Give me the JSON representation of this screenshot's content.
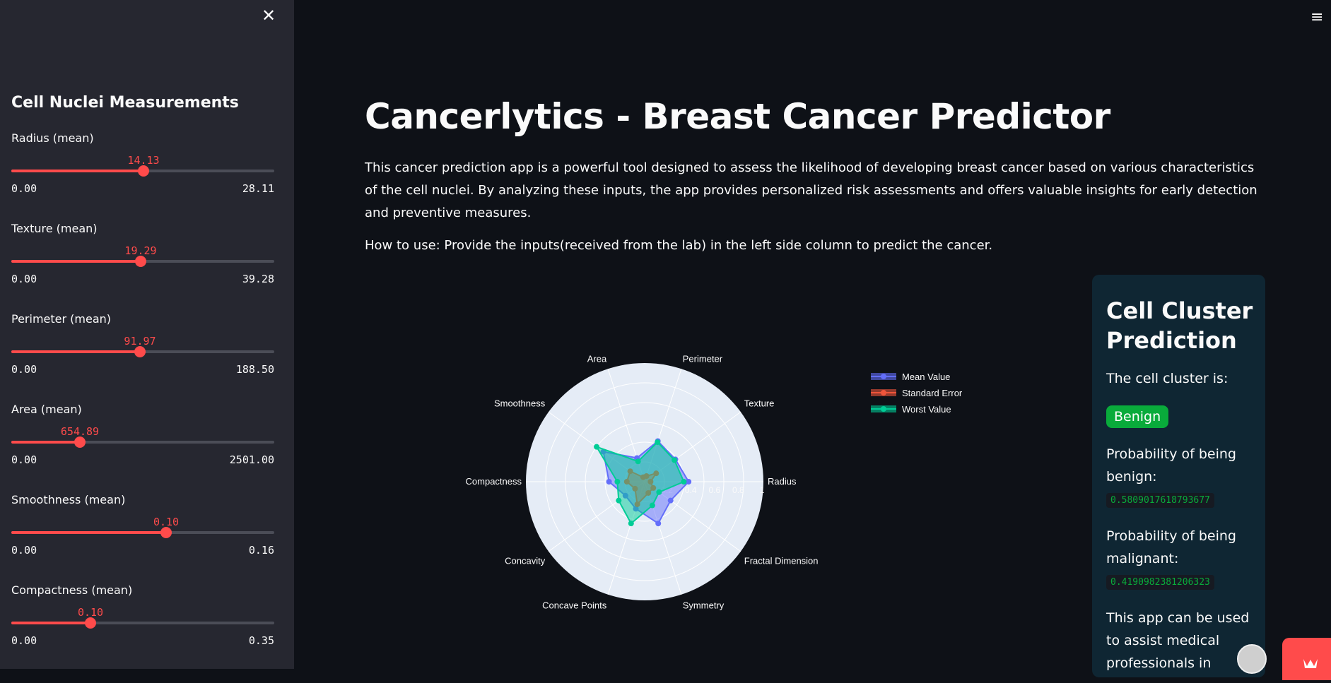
{
  "sidebar": {
    "title": "Cell Nuclei Measurements",
    "close_icon": "close-icon",
    "sliders": [
      {
        "label": "Radius (mean)",
        "value": "14.13",
        "min": "0.00",
        "max": "28.11",
        "fraction": 0.503
      },
      {
        "label": "Texture (mean)",
        "value": "19.29",
        "min": "0.00",
        "max": "39.28",
        "fraction": 0.491
      },
      {
        "label": "Perimeter (mean)",
        "value": "91.97",
        "min": "0.00",
        "max": "188.50",
        "fraction": 0.488
      },
      {
        "label": "Area (mean)",
        "value": "654.89",
        "min": "0.00",
        "max": "2501.00",
        "fraction": 0.262
      },
      {
        "label": "Smoothness (mean)",
        "value": "0.10",
        "min": "0.00",
        "max": "0.16",
        "fraction": 0.59
      },
      {
        "label": "Compactness (mean)",
        "value": "0.10",
        "min": "0.00",
        "max": "0.35",
        "fraction": 0.3
      }
    ]
  },
  "header": {
    "menu_icon": "hamburger-menu-icon"
  },
  "main": {
    "title": "Cancerlytics - Breast Cancer Predictor",
    "intro": "This cancer prediction app is a powerful tool designed to assess the likelihood of developing breast cancer based on various characteristics of the cell nuclei. By analyzing these inputs, the app provides personalized risk assessments and offers valuable insights for early detection and preventive measures.",
    "howto": "How to use: Provide the inputs(received from the lab) in the left side column to predict the cancer."
  },
  "chart_data": {
    "type": "radar",
    "categories": [
      "Radius",
      "Texture",
      "Perimeter",
      "Area",
      "Smoothness",
      "Compactness",
      "Concavity",
      "Concave Points",
      "Symmetry",
      "Fractal Dimension"
    ],
    "radial_ticks": [
      "0",
      "0.2",
      "0.4",
      "0.6",
      "0.8",
      "1"
    ],
    "radial_range": [
      0,
      1
    ],
    "legend_position": "top-right",
    "series": [
      {
        "name": "Mean Value",
        "color": "#636efa",
        "values": [
          0.37,
          0.32,
          0.36,
          0.21,
          0.43,
          0.3,
          0.2,
          0.24,
          0.37,
          0.27
        ]
      },
      {
        "name": "Standard Error",
        "color": "#ef553b",
        "values": [
          0.05,
          0.12,
          0.05,
          0.04,
          0.15,
          0.15,
          0.1,
          0.2,
          0.1,
          0.09
        ]
      },
      {
        "name": "Worst Value",
        "color": "#00cc96",
        "values": [
          0.33,
          0.31,
          0.35,
          0.18,
          0.5,
          0.23,
          0.27,
          0.37,
          0.21,
          0.15
        ]
      }
    ]
  },
  "prediction": {
    "title": "Cell Cluster Prediction",
    "subtitle": "The cell cluster is:",
    "badge": "Benign",
    "benign_label": "Probability of being benign:",
    "benign_value": "0.5809017618793677",
    "malignant_label": "Probability of being malignant:",
    "malignant_value": "0.4190982381206323",
    "note": "This app can be used to assist medical professionals in"
  },
  "colors": {
    "accent": "#ff4b4b",
    "background": "#0e1117",
    "sidebar": "#262730",
    "card": "#0f2633",
    "success": "#09ab3b"
  }
}
